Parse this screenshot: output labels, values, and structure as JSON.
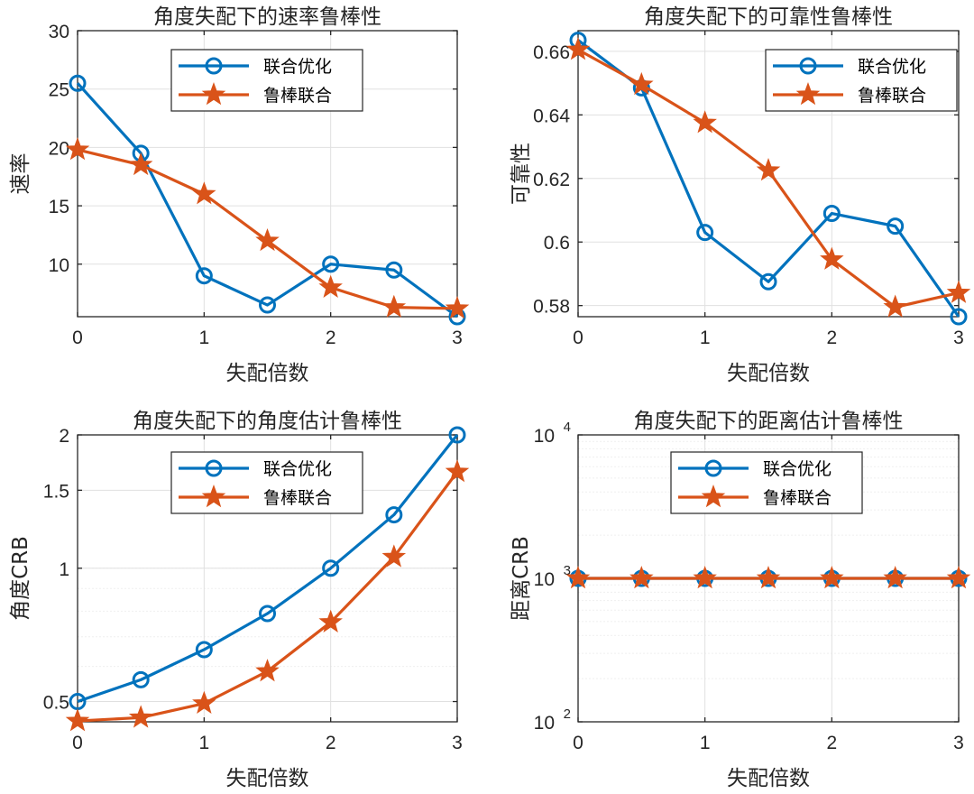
{
  "colors": {
    "series1": "#0072BD",
    "series2": "#D95319",
    "grid_major": "#e0e0e0",
    "grid_minor": "#efefef",
    "axis": "#262626"
  },
  "chart_data": [
    {
      "type": "line",
      "title": "角度失配下的速率鲁棒性",
      "xlabel": "失配倍数",
      "ylabel": "速率",
      "x": [
        0,
        0.5,
        1,
        1.5,
        2,
        2.5,
        3
      ],
      "series": [
        {
          "name": "联合优化",
          "marker": "circle",
          "values": [
            25.5,
            19.5,
            9.0,
            6.5,
            10.0,
            9.5,
            5.5
          ]
        },
        {
          "name": "鲁棒联合",
          "marker": "star",
          "values": [
            19.8,
            18.5,
            16.0,
            12.0,
            8.0,
            6.3,
            6.2
          ]
        }
      ],
      "xlim": [
        0,
        3
      ],
      "ylim": [
        5.5,
        30
      ],
      "xticks": [
        0,
        1,
        2,
        3
      ],
      "xtick_labels": [
        "0",
        "1",
        "2",
        "3"
      ],
      "yticks": [
        10,
        15,
        20,
        25,
        30
      ],
      "ytick_labels": [
        "10",
        "15",
        "20",
        "25",
        "30"
      ],
      "yscale": "linear",
      "grid": true,
      "legend_position": "top-right"
    },
    {
      "type": "line",
      "title": "角度失配下的可靠性鲁棒性",
      "xlabel": "失配倍数",
      "ylabel": "可靠性",
      "x": [
        0,
        0.5,
        1,
        1.5,
        2,
        2.5,
        3
      ],
      "series": [
        {
          "name": "联合优化",
          "marker": "circle",
          "values": [
            0.6635,
            0.6485,
            0.603,
            0.5875,
            0.609,
            0.605,
            0.5765
          ]
        },
        {
          "name": "鲁棒联合",
          "marker": "star",
          "values": [
            0.6605,
            0.6495,
            0.6375,
            0.6225,
            0.5945,
            0.5795,
            0.584
          ]
        }
      ],
      "xlim": [
        0,
        3
      ],
      "ylim": [
        0.5765,
        0.6665
      ],
      "xticks": [
        0,
        1,
        2,
        3
      ],
      "xtick_labels": [
        "0",
        "1",
        "2",
        "3"
      ],
      "yticks": [
        0.58,
        0.6,
        0.62,
        0.64,
        0.66
      ],
      "ytick_labels": [
        "0.58",
        "0.6",
        "0.62",
        "0.64",
        "0.66"
      ],
      "yscale": "linear",
      "grid": true,
      "legend_position": "top-right"
    },
    {
      "type": "line",
      "title": "角度失配下的角度估计鲁棒性",
      "xlabel": "失配倍数",
      "ylabel": "角度CRB",
      "x": [
        0,
        0.5,
        1,
        1.5,
        2,
        2.5,
        3
      ],
      "series": [
        {
          "name": "联合优化",
          "marker": "circle",
          "values": [
            0.5,
            0.56,
            0.655,
            0.79,
            1.0,
            1.32,
            2.0
          ]
        },
        {
          "name": "鲁棒联合",
          "marker": "star",
          "values": [
            0.452,
            0.46,
            0.495,
            0.585,
            0.755,
            1.06,
            1.65
          ]
        }
      ],
      "xlim": [
        0,
        3
      ],
      "ylim": [
        0.45,
        2.0
      ],
      "xticks": [
        0,
        1,
        2,
        3
      ],
      "xtick_labels": [
        "0",
        "1",
        "2",
        "3"
      ],
      "yticks": [
        0.5,
        1,
        1.5,
        2
      ],
      "ytick_labels": [
        "0.5",
        "1",
        "1.5",
        "2"
      ],
      "yscale": "log",
      "grid": true,
      "legend_position": "top-right"
    },
    {
      "type": "line",
      "title": "角度失配下的距离估计鲁棒性",
      "xlabel": "失配倍数",
      "ylabel": "距离CRB",
      "x": [
        0,
        0.5,
        1,
        1.5,
        2,
        2.5,
        3
      ],
      "series": [
        {
          "name": "联合优化",
          "marker": "circle",
          "values": [
            1000,
            1000,
            1000,
            1000,
            1000,
            1000,
            1000
          ]
        },
        {
          "name": "鲁棒联合",
          "marker": "star",
          "values": [
            1000,
            1000,
            1000,
            1000,
            1000,
            1000,
            1000
          ]
        }
      ],
      "xlim": [
        0,
        3
      ],
      "ylim": [
        100,
        10000
      ],
      "xticks": [
        0,
        1,
        2,
        3
      ],
      "xtick_labels": [
        "0",
        "1",
        "2",
        "3"
      ],
      "yticks": [
        100,
        1000,
        10000
      ],
      "ytick_labels": [
        {
          "base": "10",
          "exp": "2"
        },
        {
          "base": "10",
          "exp": "3"
        },
        {
          "base": "10",
          "exp": "4"
        }
      ],
      "yscale": "log",
      "grid": true,
      "legend_position": "top-center"
    }
  ]
}
